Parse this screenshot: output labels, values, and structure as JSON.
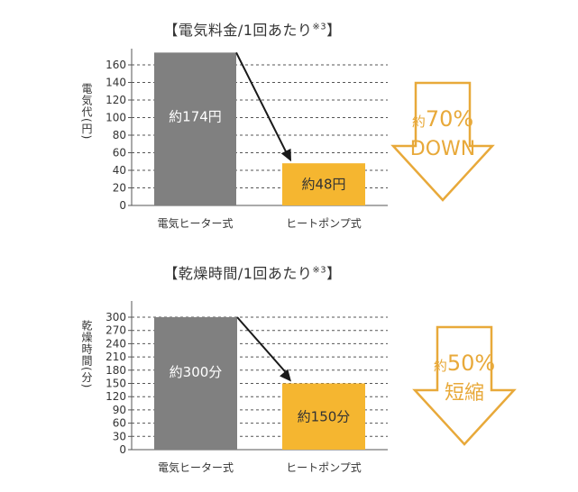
{
  "colors": {
    "gray": "#808080",
    "orange": "#f5b630",
    "arrow": "#e8a93a",
    "text": "#333333"
  },
  "charts": [
    {
      "title_main": "【電気料金/1回あたり",
      "title_note": "※3",
      "title_end": "】",
      "ylabel_main": "電気代",
      "ylabel_unit": "(円)",
      "badge_small": "約",
      "badge_big": "70%",
      "badge_line2": "DOWN"
    },
    {
      "title_main": "【乾燥時間/1回あたり",
      "title_note": "※3",
      "title_end": "】",
      "ylabel_main": "乾燥時間",
      "ylabel_unit": "(分)",
      "badge_small": "約",
      "badge_big": "50%",
      "badge_line2": "短縮"
    }
  ],
  "chart_data": [
    {
      "type": "bar",
      "title": "【電気料金/1回あたり※3】",
      "ylabel": "電気代(円)",
      "categories": [
        "電気ヒーター式",
        "ヒートポンプ式"
      ],
      "values": [
        174,
        48
      ],
      "data_labels": [
        "約174円",
        "約48円"
      ],
      "yticks": [
        0,
        20,
        40,
        60,
        80,
        100,
        120,
        140,
        160
      ],
      "ylim": [
        0,
        180
      ],
      "grid": "dashed horizontal"
    },
    {
      "type": "bar",
      "title": "【乾燥時間/1回あたり※3】",
      "ylabel": "乾燥時間(分)",
      "categories": [
        "電気ヒーター式",
        "ヒートポンプ式"
      ],
      "values": [
        300,
        150
      ],
      "data_labels": [
        "約300分",
        "約150分"
      ],
      "yticks": [
        0,
        30,
        60,
        90,
        120,
        150,
        180,
        210,
        240,
        270,
        300
      ],
      "ylim": [
        0,
        320
      ],
      "grid": "dashed horizontal"
    }
  ]
}
